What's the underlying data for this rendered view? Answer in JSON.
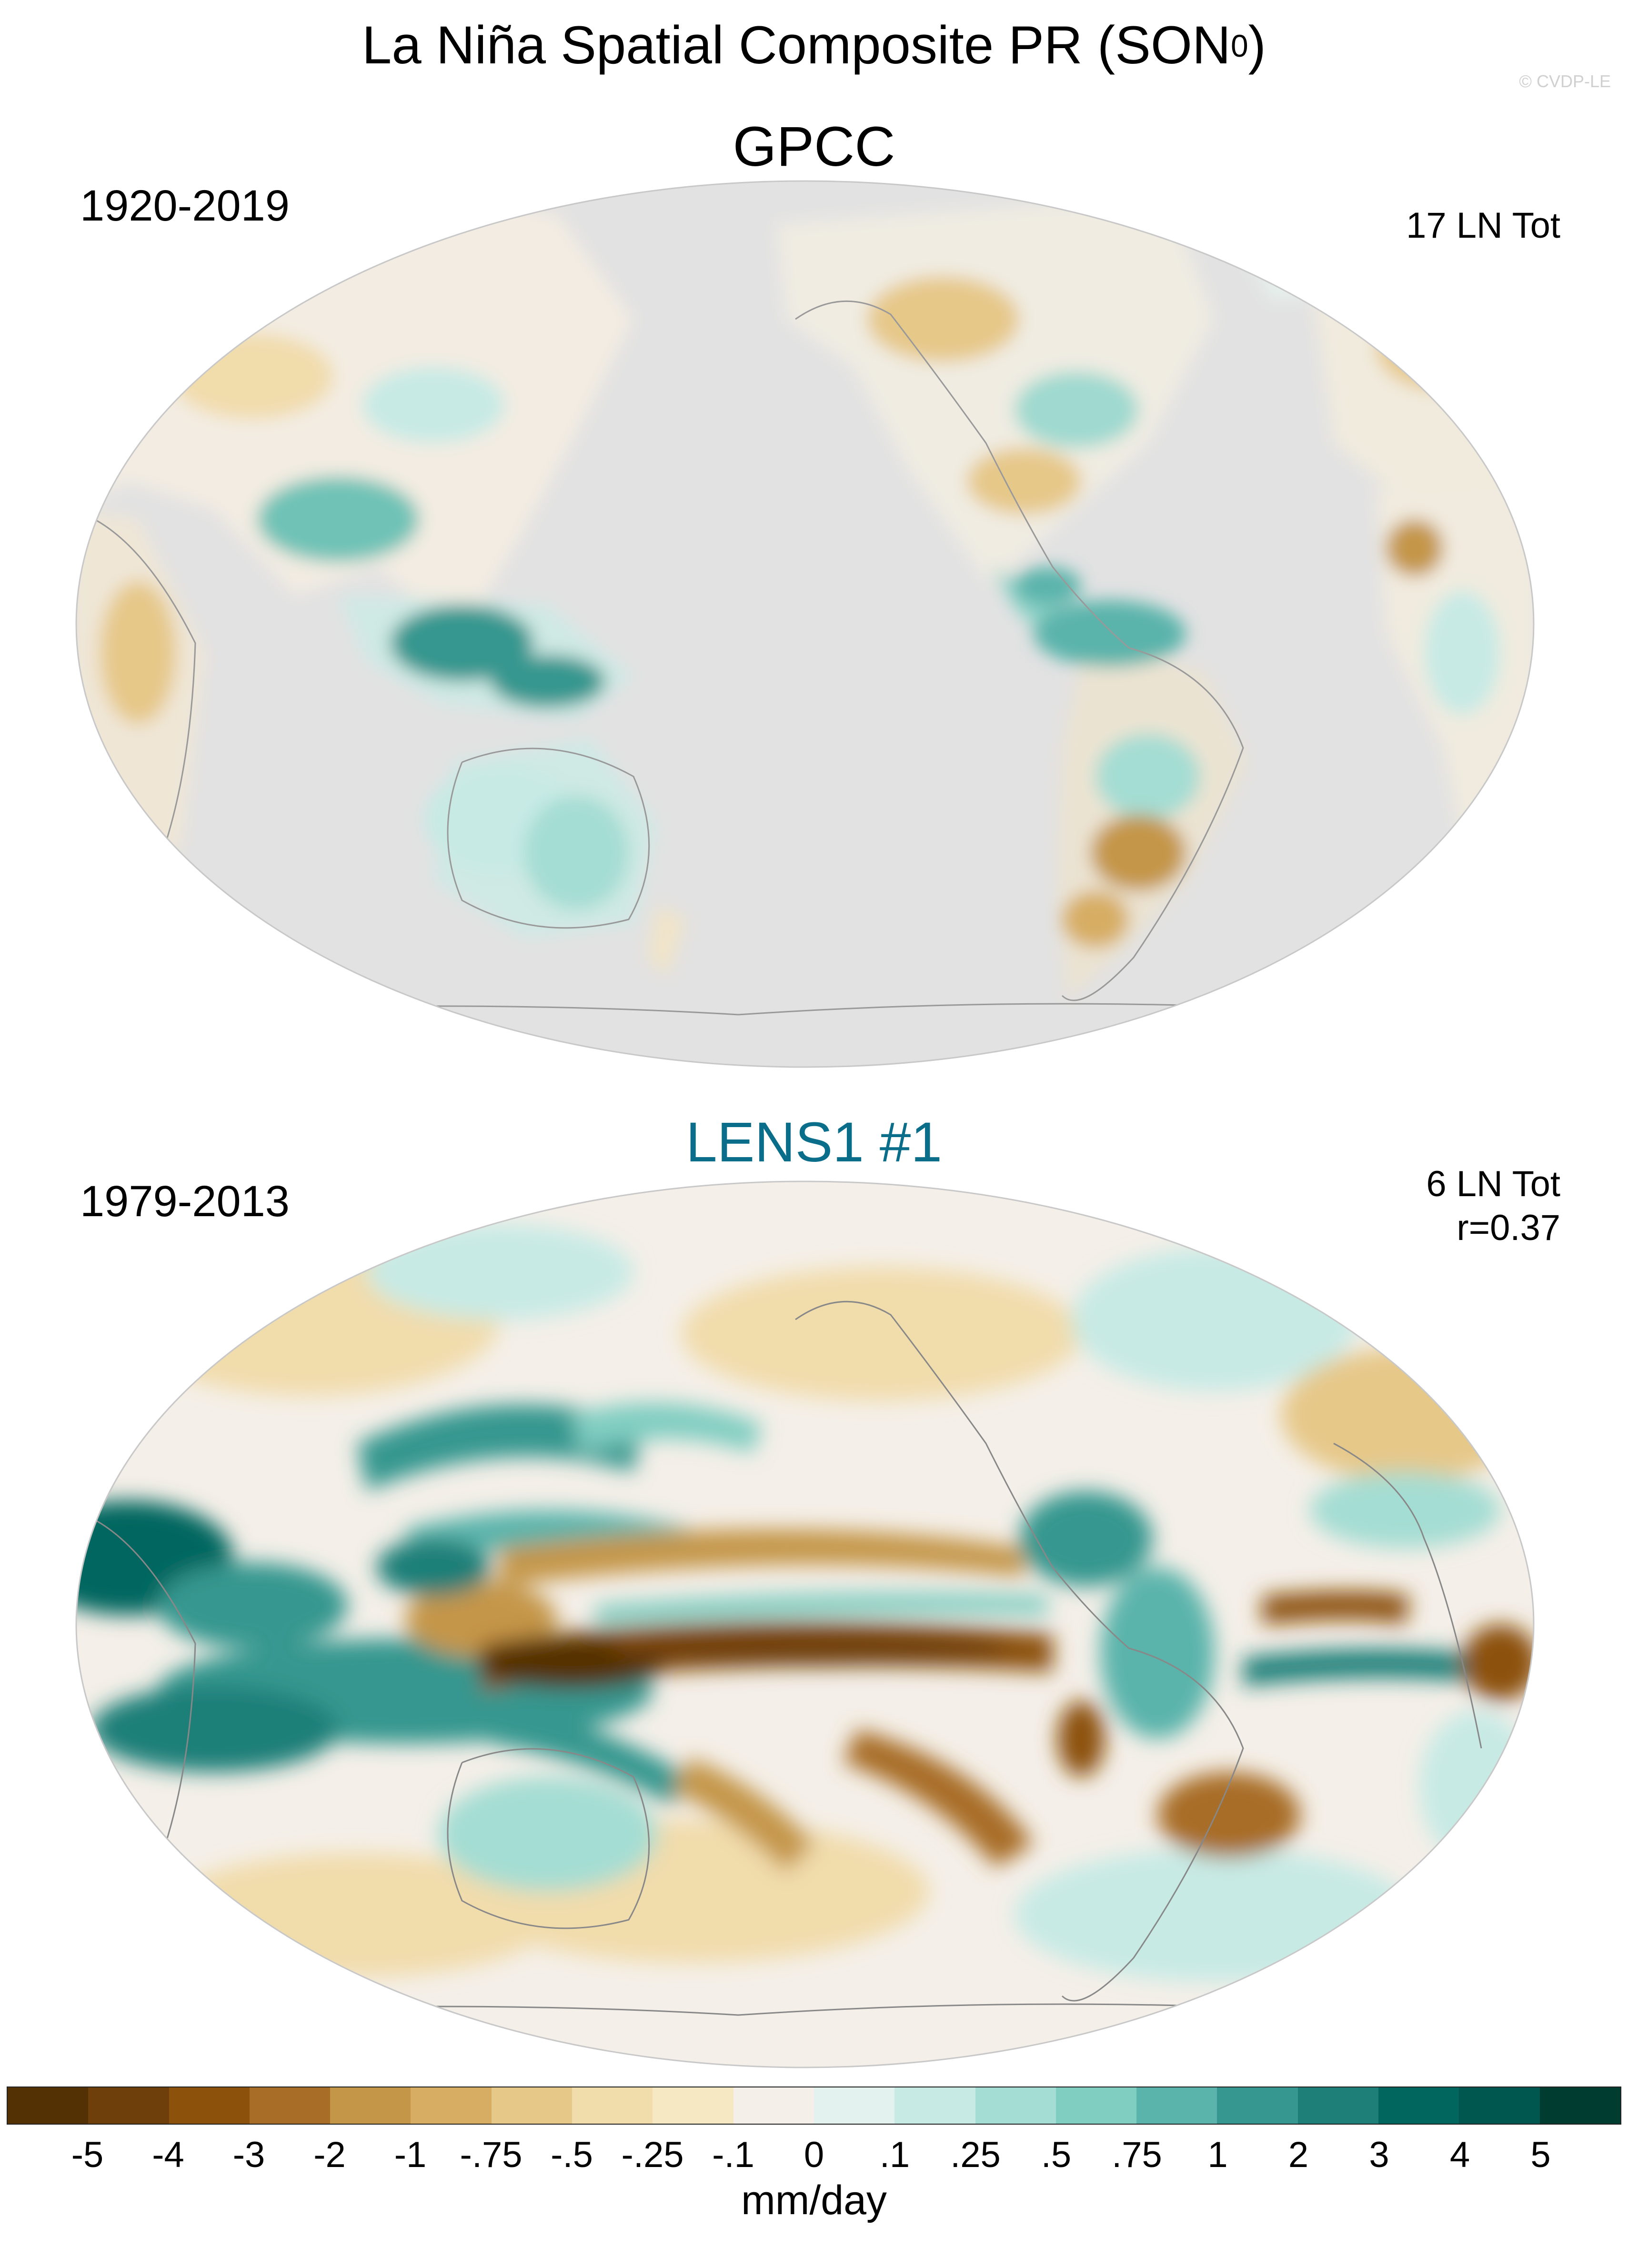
{
  "figure": {
    "title_main": "La Niña Spatial Composite PR (SON",
    "title_sup": "0",
    "title_end": ")",
    "watermark": "© CVDP-LE"
  },
  "panels": [
    {
      "name": "GPCC",
      "period": "1920-2019",
      "events": "17 LN Tot",
      "corr": "",
      "title_color": "#000000",
      "land_only": true,
      "missing_color": "#e2e2e2"
    },
    {
      "name": "LENS1 #1",
      "period": "1979-2013",
      "events": "6 LN Tot",
      "corr": "r=0.37",
      "title_color": "#0a6e8a",
      "land_only": false,
      "missing_color": ""
    }
  ],
  "colorbar": {
    "units": "mm/day",
    "colors": [
      "#543005",
      "#6f3f0b",
      "#8c510a",
      "#a86d27",
      "#c49648",
      "#d7ad64",
      "#e6c889",
      "#f1dcac",
      "#f6e8c3",
      "#f4efe8",
      "#e4f2ef",
      "#c7eae5",
      "#a4ddd3",
      "#80cdc1",
      "#5ab4ab",
      "#35978f",
      "#1e7f78",
      "#01665e",
      "#00574f",
      "#003c30"
    ],
    "ticks": [
      "-5",
      "-4",
      "-3",
      "-2",
      "-1",
      "-.75",
      "-.5",
      "-.25",
      "-.1",
      "0",
      ".1",
      ".25",
      ".5",
      ".75",
      "1",
      "2",
      "3",
      "4",
      "5"
    ]
  }
}
